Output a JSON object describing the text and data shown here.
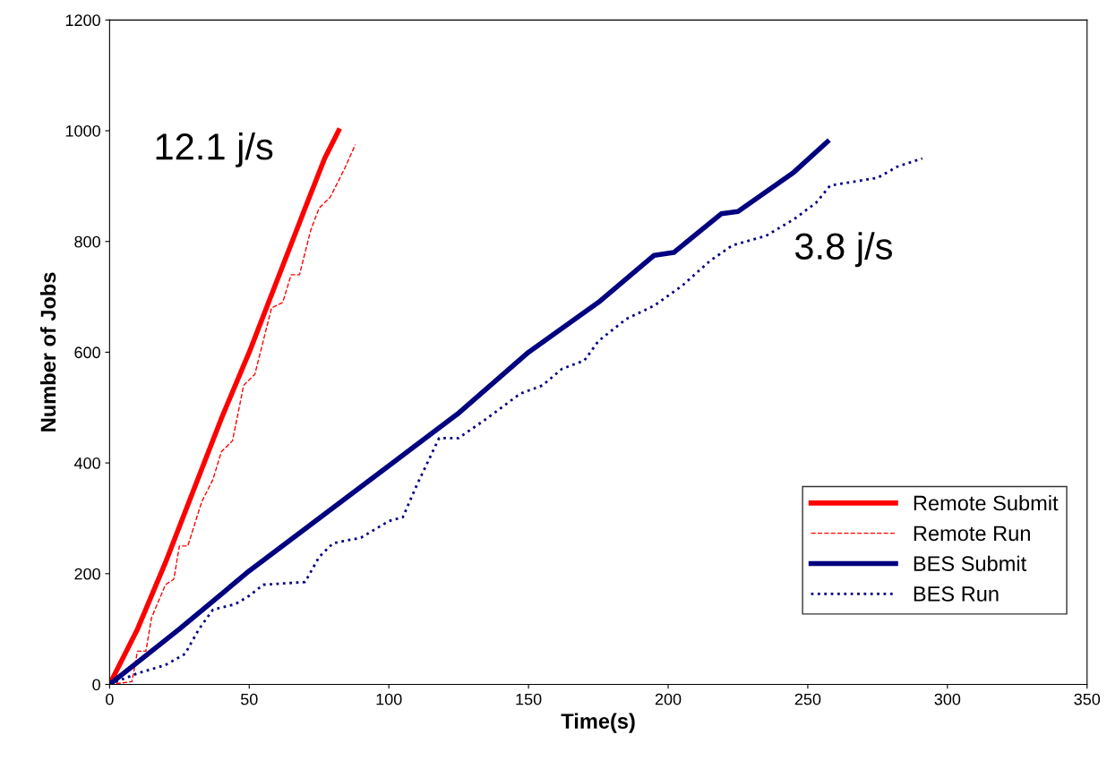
{
  "chart_data": {
    "type": "line",
    "xlabel": "Time(s)",
    "ylabel": "Number of Jobs",
    "xlim": [
      0,
      350
    ],
    "xticks": [
      0,
      50,
      100,
      150,
      200,
      250,
      300,
      350
    ],
    "ylim": [
      0,
      1200
    ],
    "yticks": [
      0,
      200,
      400,
      600,
      800,
      1000,
      1200
    ],
    "grid": false,
    "legend": "bottom right",
    "marker": "none",
    "annotations": [
      "12.1 j/s",
      "3.8 j/s"
    ],
    "series": [
      {
        "name": "Remote Submit",
        "color": "#ff0000",
        "line_style": "solid",
        "x": [
          0,
          10,
          20,
          30,
          40,
          50,
          60,
          70,
          77,
          82
        ],
        "values": [
          0,
          100,
          220,
          350,
          480,
          600,
          730,
          860,
          950,
          1000
        ]
      },
      {
        "name": "Remote Run",
        "color": "#ff0000",
        "line_style": "dashed",
        "x": [
          0,
          8,
          10,
          13,
          15,
          20,
          23,
          25,
          28,
          33,
          37,
          40,
          44,
          48,
          52,
          55,
          58,
          62,
          65,
          68,
          72,
          75,
          79,
          84,
          88
        ],
        "values": [
          0,
          5,
          60,
          60,
          120,
          180,
          190,
          250,
          250,
          330,
          370,
          420,
          440,
          540,
          560,
          620,
          680,
          690,
          740,
          740,
          820,
          860,
          880,
          930,
          975
        ]
      },
      {
        "name": "BES Submit",
        "color": "#000080",
        "line_style": "solid",
        "x": [
          0,
          25,
          50,
          75,
          100,
          125,
          150,
          175,
          195,
          202,
          219,
          225,
          245,
          257
        ],
        "values": [
          0,
          100,
          205,
          300,
          395,
          490,
          600,
          690,
          775,
          780,
          850,
          854,
          925,
          980
        ]
      },
      {
        "name": "BES Run",
        "color": "#000080",
        "line_style": "dotted",
        "x": [
          0,
          10,
          20,
          27,
          32,
          37,
          45,
          50,
          55,
          70,
          75,
          80,
          90,
          100,
          105,
          110,
          118,
          125,
          135,
          147,
          155,
          162,
          170,
          175,
          185,
          195,
          205,
          215,
          223,
          235,
          245,
          253,
          258,
          275,
          282,
          291
        ],
        "values": [
          0,
          20,
          35,
          55,
          100,
          135,
          145,
          160,
          180,
          185,
          230,
          255,
          265,
          295,
          302,
          360,
          445,
          445,
          480,
          525,
          540,
          570,
          585,
          620,
          660,
          684,
          720,
          765,
          793,
          810,
          840,
          870,
          901,
          915,
          935,
          950
        ]
      }
    ]
  }
}
